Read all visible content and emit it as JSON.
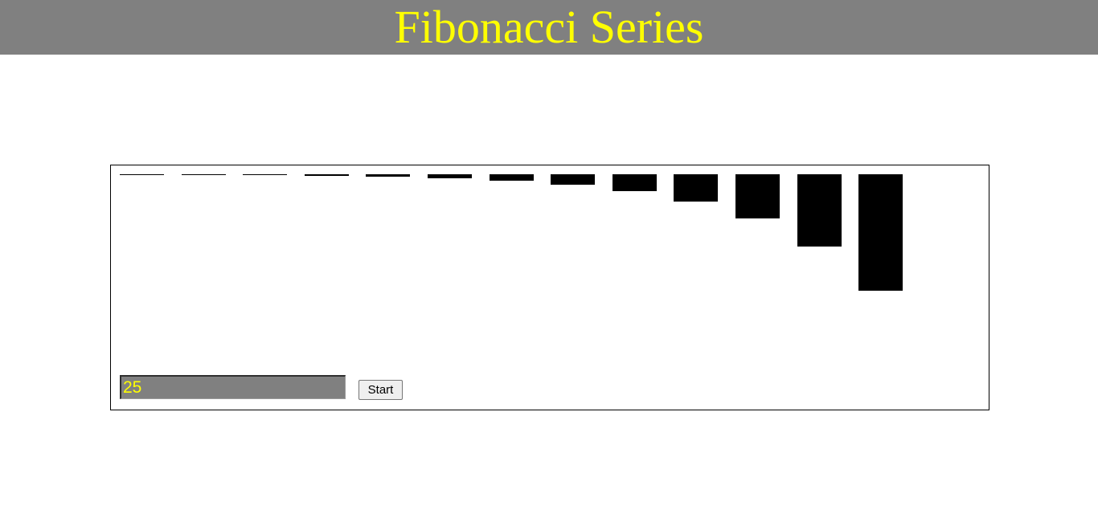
{
  "header": {
    "title": "Fibonacci Series"
  },
  "controls": {
    "input_value": "25",
    "start_label": "Start"
  },
  "colors": {
    "header_bg": "#808080",
    "title": "#ffff00",
    "bar": "#000000",
    "input_bg": "#808080",
    "input_text": "#ffff00"
  },
  "chart_data": {
    "type": "bar",
    "values": [
      1,
      1,
      2,
      3,
      5,
      8,
      13,
      21,
      34,
      55,
      89,
      144,
      233
    ],
    "ylim": [
      0,
      233
    ],
    "orientation": "down-from-top"
  }
}
